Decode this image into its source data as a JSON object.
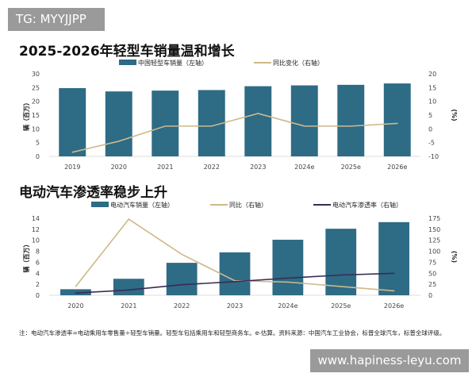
{
  "watermark_tag": "TG: MYYJJPP",
  "site_banner": "www.hapiness-leyu.com",
  "footnote": "注：电动汽车渗透率=电动乘用车零售量÷轻型车销量。轻型车包括乘用车和轻型商务车。e-估算。资料来源：中国汽车工业协会，标普全球汽车，标普全球评级。",
  "colors": {
    "bar": "#2e6b85",
    "yoy": "#cdb98a",
    "penetration": "#3a2a55"
  },
  "chart_data": [
    {
      "type": "bar+line",
      "title": "2025-2026年轻型车销量温和增长",
      "categories": [
        "2019",
        "2020",
        "2021",
        "2022",
        "2023",
        "2024e",
        "2025e",
        "2026e"
      ],
      "ylabel": "辆（百万）",
      "y2label": "(%)",
      "ylim": [
        0,
        30
      ],
      "yticks": [
        0,
        5,
        10,
        15,
        20,
        25,
        30
      ],
      "y2lim": [
        -10,
        20
      ],
      "y2ticks": [
        -10,
        -5,
        0,
        5,
        10,
        15,
        20
      ],
      "series": [
        {
          "name": "中国轻型车销量（左轴）",
          "type": "bar",
          "axis": "left",
          "values": [
            24.8,
            23.6,
            23.9,
            24.1,
            25.5,
            25.8,
            26.0,
            26.5
          ]
        },
        {
          "name": "同比变化（右轴）",
          "type": "line",
          "axis": "right",
          "values": [
            -8.5,
            -4.5,
            1,
            1,
            5.6,
            1,
            1,
            2
          ]
        }
      ]
    },
    {
      "type": "bar+line",
      "title": "电动汽车渗透率稳步上升",
      "categories": [
        "2020",
        "2021",
        "2022",
        "2023",
        "2024e",
        "2025e",
        "2026e"
      ],
      "ylabel": "辆（百万）",
      "y2label": "(%)",
      "ylim": [
        0,
        14
      ],
      "yticks": [
        0,
        2,
        4,
        6,
        8,
        10,
        12,
        14
      ],
      "y2lim": [
        0,
        175
      ],
      "y2ticks": [
        0,
        25,
        50,
        75,
        100,
        125,
        150,
        175
      ],
      "series": [
        {
          "name": "电动汽车销量（左轴）",
          "type": "bar",
          "axis": "left",
          "values": [
            1.1,
            3.0,
            5.9,
            7.8,
            10.1,
            12.1,
            13.3
          ]
        },
        {
          "name": "同比（右轴）",
          "type": "line",
          "axis": "right",
          "values": [
            20,
            173,
            93,
            33,
            30,
            20,
            10
          ]
        },
        {
          "name": "电动汽车渗透率（右轴）",
          "type": "line",
          "axis": "right",
          "values": [
            5,
            12,
            24,
            31,
            39,
            46,
            50
          ]
        }
      ]
    }
  ]
}
